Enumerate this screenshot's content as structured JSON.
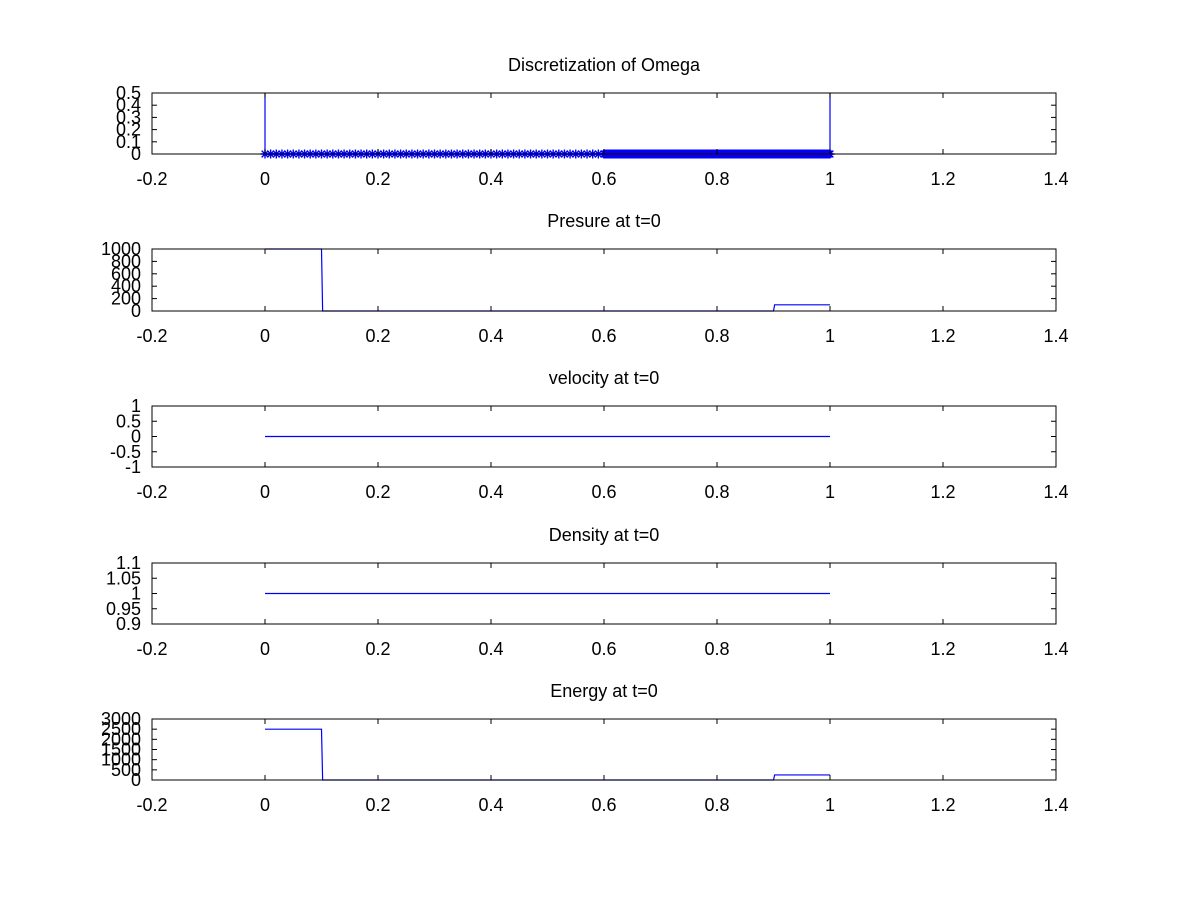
{
  "chart_data": [
    {
      "type": "line",
      "title": "Discretization of Omega",
      "xlabel": "",
      "ylabel": "",
      "xlim": [
        -0.2,
        1.4
      ],
      "ylim": [
        0,
        0.5
      ],
      "xticks": [
        -0.2,
        0,
        0.2,
        0.4,
        0.6,
        0.8,
        1,
        1.2,
        1.4
      ],
      "xtick_labels": [
        "-0.2",
        "0",
        "0.2",
        "0.4",
        "0.6",
        "0.8",
        "1",
        "1.2",
        "1.4"
      ],
      "yticks": [
        0,
        0.1,
        0.2,
        0.3,
        0.4,
        0.5
      ],
      "ytick_labels": [
        "0",
        "0.1",
        "0.2",
        "0.3",
        "0.4",
        "0.5"
      ],
      "grid": false,
      "series": [
        {
          "color": "#0000ff",
          "style": "line",
          "x": [
            0,
            0,
            1,
            1
          ],
          "y": [
            0.5,
            0,
            0,
            0.5
          ]
        },
        {
          "color": "#0000ff",
          "style": "markers",
          "marker": "asterisk",
          "x_range": [
            0,
            1
          ],
          "count_segments": [
            {
              "from": 0,
              "to": 0.6,
              "n": 61
            },
            {
              "from": 0.6,
              "to": 1,
              "n": 201
            }
          ],
          "y": 0
        },
        {
          "color": "#ff0000",
          "style": "line",
          "x": [
            0.6,
            1
          ],
          "y": [
            0,
            0
          ]
        }
      ]
    },
    {
      "type": "line",
      "title": "Presure at t=0",
      "xlabel": "",
      "ylabel": "",
      "xlim": [
        -0.2,
        1.4
      ],
      "ylim": [
        0,
        1000
      ],
      "xticks": [
        -0.2,
        0,
        0.2,
        0.4,
        0.6,
        0.8,
        1,
        1.2,
        1.4
      ],
      "xtick_labels": [
        "-0.2",
        "0",
        "0.2",
        "0.4",
        "0.6",
        "0.8",
        "1",
        "1.2",
        "1.4"
      ],
      "yticks": [
        0,
        200,
        400,
        600,
        800,
        1000
      ],
      "ytick_labels": [
        "0",
        "200",
        "400",
        "600",
        "800",
        "1000"
      ],
      "grid": false,
      "series": [
        {
          "color": "#0000ff",
          "style": "line",
          "x": [
            0,
            0.1,
            0.102,
            0.9,
            0.902,
            1
          ],
          "y": [
            1000,
            1000,
            0.01,
            0.01,
            100,
            100
          ]
        }
      ]
    },
    {
      "type": "line",
      "title": "velocity at t=0",
      "xlabel": "",
      "ylabel": "",
      "xlim": [
        -0.2,
        1.4
      ],
      "ylim": [
        -1,
        1
      ],
      "xticks": [
        -0.2,
        0,
        0.2,
        0.4,
        0.6,
        0.8,
        1,
        1.2,
        1.4
      ],
      "xtick_labels": [
        "-0.2",
        "0",
        "0.2",
        "0.4",
        "0.6",
        "0.8",
        "1",
        "1.2",
        "1.4"
      ],
      "yticks": [
        -1,
        -0.5,
        0,
        0.5,
        1
      ],
      "ytick_labels": [
        "-1",
        "-0.5",
        "0",
        "0.5",
        "1"
      ],
      "grid": false,
      "series": [
        {
          "color": "#0000ff",
          "style": "line",
          "x": [
            0,
            1
          ],
          "y": [
            0,
            0
          ]
        }
      ]
    },
    {
      "type": "line",
      "title": "Density at t=0",
      "xlabel": "",
      "ylabel": "",
      "xlim": [
        -0.2,
        1.4
      ],
      "ylim": [
        0.9,
        1.1
      ],
      "xticks": [
        -0.2,
        0,
        0.2,
        0.4,
        0.6,
        0.8,
        1,
        1.2,
        1.4
      ],
      "xtick_labels": [
        "-0.2",
        "0",
        "0.2",
        "0.4",
        "0.6",
        "0.8",
        "1",
        "1.2",
        "1.4"
      ],
      "yticks": [
        0.9,
        0.95,
        1,
        1.05,
        1.1
      ],
      "ytick_labels": [
        "0.9",
        "0.95",
        "1",
        "1.05",
        "1.1"
      ],
      "grid": false,
      "series": [
        {
          "color": "#0000ff",
          "style": "line",
          "x": [
            0,
            1
          ],
          "y": [
            1,
            1
          ]
        }
      ]
    },
    {
      "type": "line",
      "title": "Energy at t=0",
      "xlabel": "",
      "ylabel": "",
      "xlim": [
        -0.2,
        1.4
      ],
      "ylim": [
        0,
        3000
      ],
      "xticks": [
        -0.2,
        0,
        0.2,
        0.4,
        0.6,
        0.8,
        1,
        1.2,
        1.4
      ],
      "xtick_labels": [
        "-0.2",
        "0",
        "0.2",
        "0.4",
        "0.6",
        "0.8",
        "1",
        "1.2",
        "1.4"
      ],
      "yticks": [
        0,
        500,
        1000,
        1500,
        2000,
        2500,
        3000
      ],
      "ytick_labels": [
        "0",
        "500",
        "1000",
        "1500",
        "2000",
        "2500",
        "3000"
      ],
      "grid": false,
      "series": [
        {
          "color": "#0000ff",
          "style": "line",
          "x": [
            0,
            0.1,
            0.102,
            0.9,
            0.902,
            1
          ],
          "y": [
            2500,
            2500,
            0.025,
            0.025,
            250,
            250
          ]
        }
      ]
    }
  ]
}
